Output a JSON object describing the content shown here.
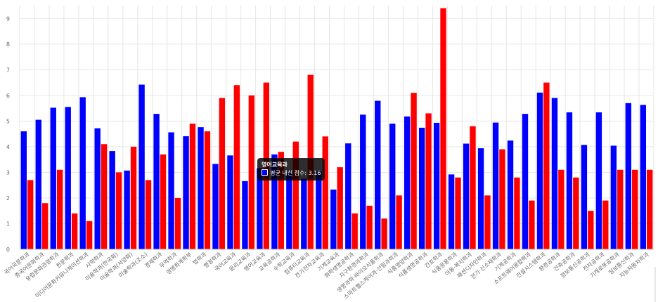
{
  "chart_data": {
    "type": "bar",
    "title": "",
    "xlabel": "",
    "ylabel": "",
    "ylim": [
      0,
      9.5
    ],
    "yticks": [
      0,
      1,
      2,
      3,
      4,
      5,
      6,
      7,
      8,
      9
    ],
    "grid": true,
    "categories": [
      "국어국문학과",
      "중국어문화학과",
      "유럽문화관광학과",
      "한문학과",
      "미디어문화커뮤니케이션학과",
      "사학학과",
      "미술학과(한국화)",
      "미술학과(서양화)",
      "미술학과(조소)",
      "경제학과",
      "무역학과",
      "경영회계학부",
      "법학과",
      "행정학과",
      "국어교육과",
      "윤리교육과",
      "영어교육과",
      "교육공학과",
      "수학교육과",
      "컴퓨터교육과",
      "전기전자교육과",
      "기계교육과",
      "화학생명공학과",
      "지구환경과학과",
      "생명과학·바이오식품학과",
      "스마트헬스케어과·산림과학과",
      "식품영양학과",
      "식품생명공학과",
      "간호학과",
      "식품응용학과",
      "아동·복지학과",
      "패션디자인학과",
      "전기·신소재학과",
      "기계공학과",
      "소프트웨어융합학과",
      "건설시스템학과",
      "환경공학과",
      "건축공학과",
      "정보통신공학과",
      "전자공학과",
      "기계로봇공학과",
      "정보통신학과",
      "지능자동차학과"
    ],
    "series": [
      {
        "color": "#0000ff",
        "values": [
          4.6,
          5.05,
          5.52,
          5.55,
          5.93,
          4.72,
          3.83,
          3.07,
          6.42,
          5.28,
          4.56,
          4.41,
          4.76,
          3.33,
          3.66,
          2.66,
          3.16,
          3.7,
          3.0,
          2.75,
          3.05,
          2.33,
          4.13,
          5.25,
          5.79,
          4.9,
          5.18,
          4.74,
          4.93,
          2.92,
          4.12,
          3.94,
          4.94,
          4.24,
          5.28,
          6.11,
          5.9,
          5.34,
          4.07,
          5.34,
          4.04,
          5.7,
          5.63
        ]
      },
      {
        "color": "#ff0000",
        "values": [
          2.7,
          1.8,
          3.1,
          1.4,
          1.1,
          4.1,
          3.0,
          4.0,
          2.7,
          3.7,
          2.0,
          4.9,
          4.6,
          5.9,
          6.4,
          6.0,
          6.5,
          3.8,
          4.2,
          6.8,
          4.4,
          3.2,
          1.4,
          1.7,
          1.2,
          2.1,
          6.1,
          5.3,
          9.4,
          2.8,
          4.8,
          2.1,
          3.9,
          2.8,
          1.9,
          6.5,
          3.1,
          2.8,
          1.5,
          1.9,
          3.1,
          3.1,
          3.1
        ]
      }
    ]
  },
  "tooltip": {
    "title": "영어교육과",
    "label": "평균 내신 점수: 3.16",
    "swatch_color": "#0000ff",
    "category_index": 16
  }
}
